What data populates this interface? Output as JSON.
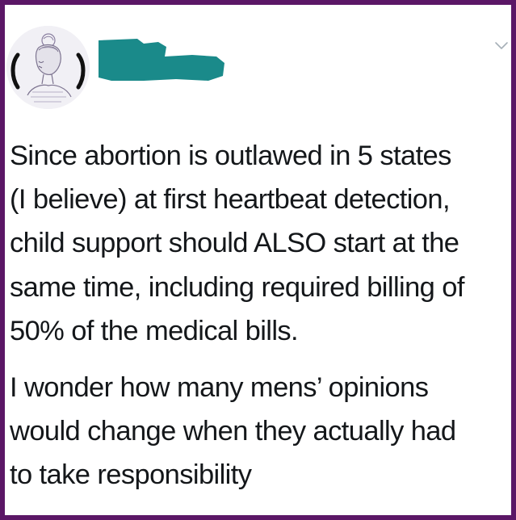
{
  "tweet": {
    "author_avatar_icon": "woman-sketch-avatar-icon",
    "redaction_color": "#1a8a8a",
    "menu_icon": "chevron-down-icon",
    "paragraphs": [
      {
        "lines": [
          "Since abortion is outlawed in 5 states",
          "(I believe) at first heartbeat detection,",
          "child support should ALSO start at the",
          "same time, including required billing of",
          "50% of the medical bills."
        ]
      },
      {
        "lines": [
          "I wonder how many mens’ opinions",
          "would change when they actually had",
          "to take responsibility"
        ]
      }
    ]
  },
  "frame_color": "#5b1766"
}
